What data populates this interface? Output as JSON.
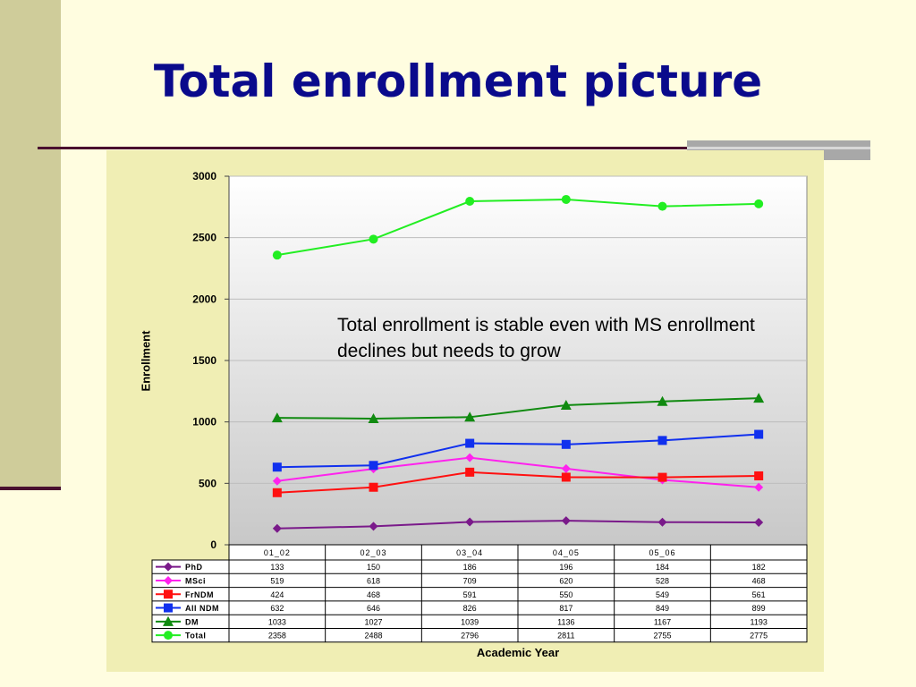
{
  "slide": {
    "title": "Total enrollment picture",
    "annotation": "Total enrollment is stable even with MS enrollment declines but needs to grow"
  },
  "chart_data": {
    "type": "line",
    "xlabel": "Academic Year",
    "ylabel": "Enrollment",
    "ylim": [
      0,
      3000
    ],
    "yticks": [
      0,
      500,
      1000,
      1500,
      2000,
      2500,
      3000
    ],
    "grid": true,
    "legend": "table-below",
    "categories": [
      "01_02",
      "02_03",
      "03_04",
      "04_05",
      "05_06",
      ""
    ],
    "series": [
      {
        "name": "PhD",
        "color": "#7a1a8a",
        "marker": "diamond",
        "values": [
          133,
          150,
          186,
          196,
          184,
          182
        ]
      },
      {
        "name": "MSci",
        "color": "#ff22ee",
        "marker": "diamond",
        "values": [
          519,
          618,
          709,
          620,
          528,
          468
        ]
      },
      {
        "name": "FrNDM",
        "color": "#ff1010",
        "marker": "square",
        "values": [
          424,
          468,
          591,
          550,
          549,
          561
        ]
      },
      {
        "name": "All NDM",
        "color": "#1030ee",
        "marker": "square",
        "values": [
          632,
          646,
          826,
          817,
          849,
          899
        ]
      },
      {
        "name": "DM",
        "color": "#108a10",
        "marker": "triangle",
        "values": [
          1033,
          1027,
          1039,
          1136,
          1167,
          1193
        ]
      },
      {
        "name": "Total",
        "color": "#22ee22",
        "marker": "circle",
        "values": [
          2358,
          2488,
          2796,
          2811,
          2755,
          2775
        ]
      }
    ]
  }
}
